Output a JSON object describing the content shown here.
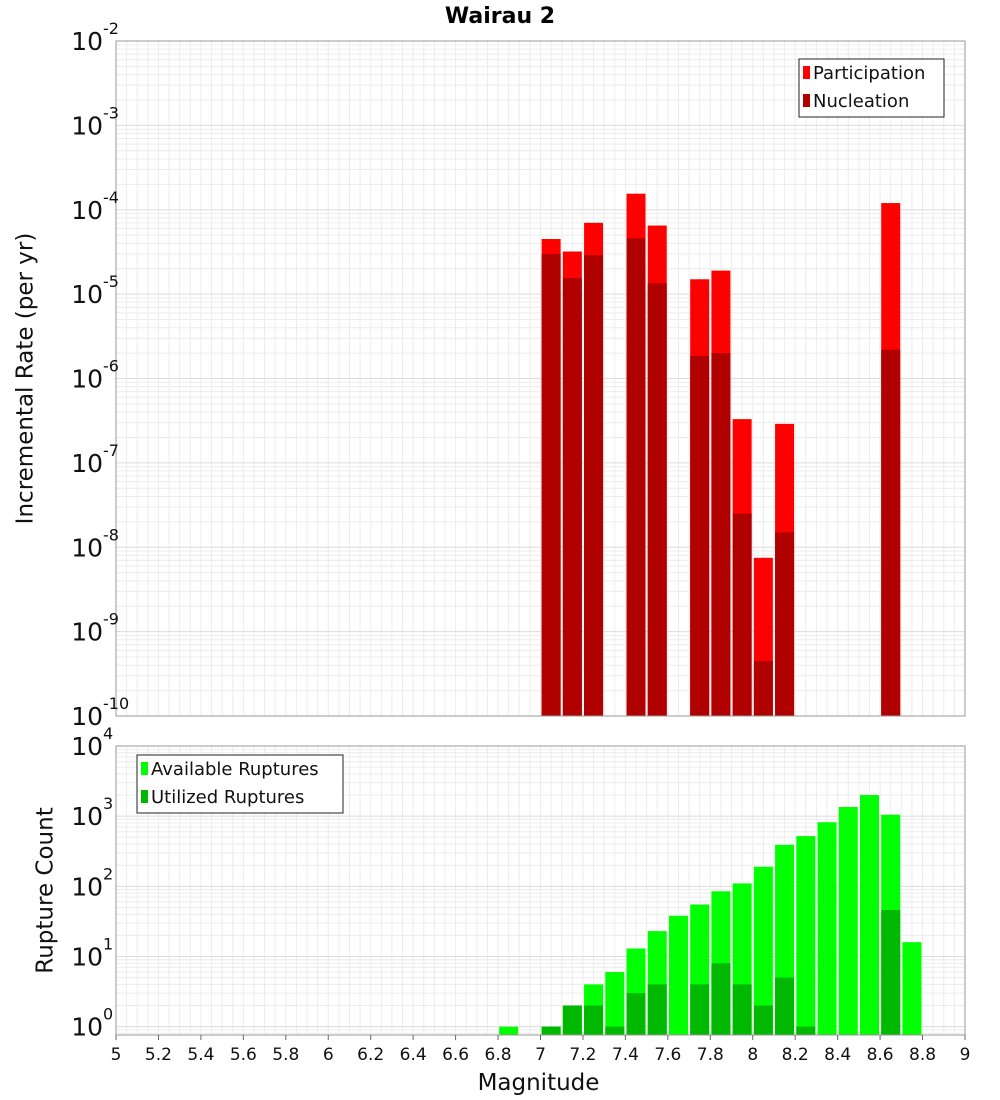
{
  "title": "Wairau 2",
  "chart_data": [
    {
      "type": "bar",
      "panel": "top",
      "ylabel": "Incremental Rate (per yr)",
      "xlabel": "",
      "yscale": "log",
      "ylim": [
        1e-10,
        0.01
      ],
      "xlim": [
        5,
        9
      ],
      "y_ticks": [
        {
          "base": "10",
          "exp": "-10",
          "v": 1e-10
        },
        {
          "base": "10",
          "exp": "-9",
          "v": 1e-09
        },
        {
          "base": "10",
          "exp": "-8",
          "v": 1e-08
        },
        {
          "base": "10",
          "exp": "-7",
          "v": 1e-07
        },
        {
          "base": "10",
          "exp": "-6",
          "v": 1e-06
        },
        {
          "base": "10",
          "exp": "-5",
          "v": 1e-05
        },
        {
          "base": "10",
          "exp": "-4",
          "v": 0.0001
        },
        {
          "base": "10",
          "exp": "-3",
          "v": 0.001
        },
        {
          "base": "10",
          "exp": "-2",
          "v": 0.01
        }
      ],
      "grid": true,
      "legend_position": "top-right",
      "series": [
        {
          "name": "Participation",
          "color": "#ff0000",
          "x": [
            7.05,
            7.15,
            7.25,
            7.45,
            7.55,
            7.75,
            7.85,
            7.95,
            8.05,
            8.15,
            8.65
          ],
          "values": [
            4.5e-05,
            3.2e-05,
            7e-05,
            0.000155,
            6.5e-05,
            1.5e-05,
            1.9e-05,
            3.3e-07,
            7.5e-09,
            2.9e-07,
            0.00012
          ]
        },
        {
          "name": "Nucleation",
          "color": "#b00000",
          "x": [
            7.05,
            7.15,
            7.25,
            7.45,
            7.55,
            7.75,
            7.85,
            7.95,
            8.05,
            8.15,
            8.65
          ],
          "values": [
            3e-05,
            1.55e-05,
            2.9e-05,
            4.6e-05,
            1.35e-05,
            1.85e-06,
            2e-06,
            2.5e-08,
            4.5e-10,
            1.5e-08,
            2.2e-06
          ]
        }
      ]
    },
    {
      "type": "bar",
      "panel": "bottom",
      "ylabel": "Rupture Count",
      "xlabel": "Magnitude",
      "yscale": "log",
      "ylim": [
        0.76,
        10000
      ],
      "xlim": [
        5,
        9
      ],
      "x_ticks": [
        "5",
        "5.2",
        "5.4",
        "5.6",
        "5.8",
        "6",
        "6.2",
        "6.4",
        "6.6",
        "6.8",
        "7",
        "7.2",
        "7.4",
        "7.6",
        "7.8",
        "8",
        "8.2",
        "8.4",
        "8.6",
        "8.8",
        "9"
      ],
      "y_ticks": [
        {
          "base": "10",
          "exp": "0",
          "v": 1
        },
        {
          "base": "10",
          "exp": "1",
          "v": 10
        },
        {
          "base": "10",
          "exp": "2",
          "v": 100
        },
        {
          "base": "10",
          "exp": "3",
          "v": 1000
        },
        {
          "base": "10",
          "exp": "4",
          "v": 10000
        }
      ],
      "grid": true,
      "legend_position": "top-left",
      "series": [
        {
          "name": "Available Ruptures",
          "color": "#00ff00",
          "x": [
            6.85,
            7.05,
            7.15,
            7.25,
            7.35,
            7.45,
            7.55,
            7.65,
            7.75,
            7.85,
            7.95,
            8.05,
            8.15,
            8.25,
            8.35,
            8.45,
            8.55,
            8.65,
            8.75
          ],
          "values": [
            1,
            1,
            2,
            4,
            6,
            13,
            23,
            38,
            55,
            85,
            110,
            190,
            390,
            520,
            820,
            1350,
            2000,
            1050,
            16
          ]
        },
        {
          "name": "Utilized Ruptures",
          "color": "#00b800",
          "x": [
            7.05,
            7.15,
            7.25,
            7.35,
            7.45,
            7.55,
            7.75,
            7.85,
            7.95,
            8.05,
            8.15,
            8.25,
            8.65
          ],
          "values": [
            1,
            2,
            2,
            1,
            3,
            4,
            4,
            8,
            4,
            2,
            5,
            1,
            46
          ]
        }
      ]
    }
  ]
}
